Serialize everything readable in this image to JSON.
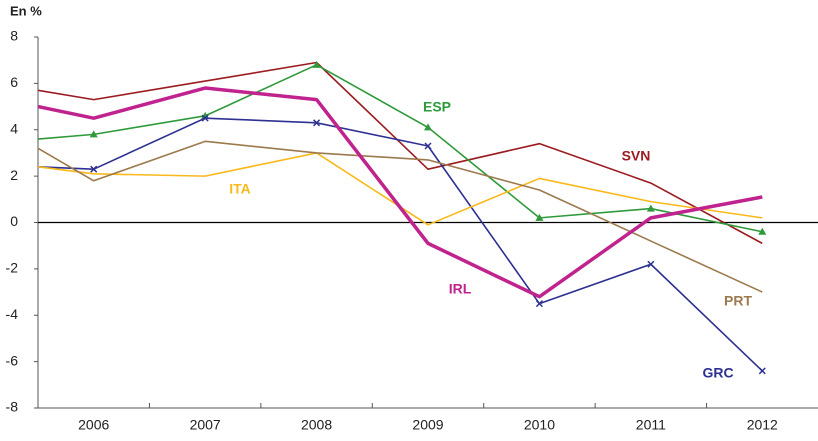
{
  "chart_data": {
    "type": "line",
    "y_label": "En %",
    "x": [
      2005.5,
      2006,
      2007,
      2008,
      2009,
      2010,
      2011,
      2012
    ],
    "xlim": [
      2005.5,
      2012.5
    ],
    "xticks": [
      2006,
      2007,
      2008,
      2009,
      2010,
      2011,
      2012
    ],
    "ylim": [
      -8,
      8
    ],
    "yticks": [
      -8,
      -6,
      -4,
      -2,
      0,
      2,
      4,
      6,
      8
    ],
    "series": [
      {
        "name": "SVN",
        "color": "#9b1c20",
        "values": [
          5.7,
          5.3,
          6.1,
          6.9,
          2.3,
          3.4,
          1.7,
          -0.9
        ]
      },
      {
        "name": "ESP",
        "color": "#2e9a3a",
        "marker": "triangle",
        "values": [
          3.6,
          3.8,
          4.6,
          6.8,
          4.1,
          0.2,
          0.6,
          -0.4
        ]
      },
      {
        "name": "GRC",
        "color": "#2e3192",
        "marker": "x",
        "values": [
          2.4,
          2.3,
          4.5,
          4.3,
          3.3,
          -3.5,
          -1.8,
          -6.4
        ]
      },
      {
        "name": "ITA",
        "color": "#f9b91b",
        "values": [
          2.4,
          2.1,
          2.0,
          3.0,
          -0.1,
          1.9,
          0.9,
          0.2
        ]
      },
      {
        "name": "PRT",
        "color": "#9c7a4d",
        "values": [
          3.2,
          1.8,
          3.5,
          3.0,
          2.7,
          1.4,
          -0.8,
          -3.0
        ]
      },
      {
        "name": "IRL",
        "color": "#c0238e",
        "width": 3.5,
        "values": [
          5.0,
          4.5,
          5.8,
          5.3,
          -0.9,
          -3.2,
          0.2,
          1.1
        ]
      }
    ]
  }
}
